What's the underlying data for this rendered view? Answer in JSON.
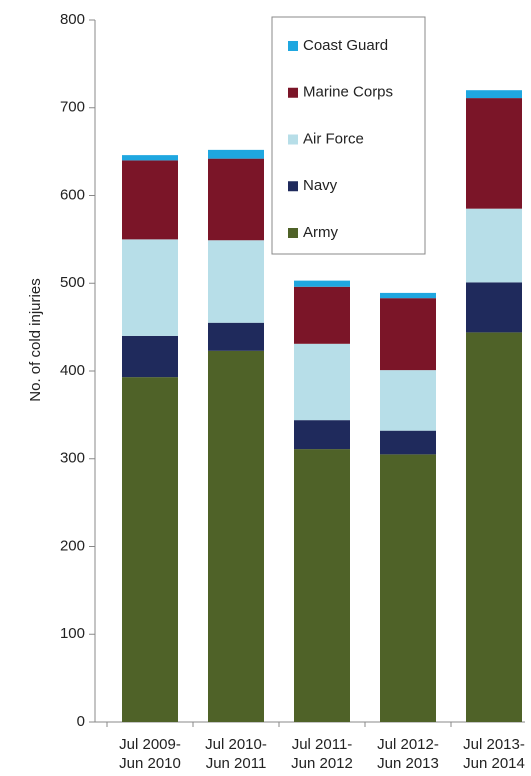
{
  "chart_data": {
    "type": "stacked_bar",
    "y_label": "No. of cold injuries",
    "categories": [
      [
        "Jul 2009-",
        "Jun 2010"
      ],
      [
        "Jul 2010-",
        "Jun 2011"
      ],
      [
        "Jul 2011-",
        "Jun 2012"
      ],
      [
        "Jul 2012-",
        "Jun 2013"
      ],
      [
        "Jul 2013-",
        "Jun 2014"
      ]
    ],
    "series": [
      {
        "name": "Army",
        "color": "#4f6228",
        "values": [
          393,
          423,
          311,
          305,
          444
        ]
      },
      {
        "name": "Navy",
        "color": "#1f2a5c",
        "values": [
          47,
          32,
          33,
          27,
          57
        ]
      },
      {
        "name": "Air Force",
        "color": "#b7dee8",
        "values": [
          110,
          94,
          87,
          69,
          84
        ]
      },
      {
        "name": "Marine Corps",
        "color": "#7b1528",
        "values": [
          90,
          93,
          65,
          82,
          126
        ]
      },
      {
        "name": "Coast Guard",
        "color": "#1fa7e0",
        "values": [
          6,
          10,
          7,
          6,
          9
        ]
      }
    ],
    "ylim": [
      0,
      800
    ],
    "yticks": [
      0,
      100,
      200,
      300,
      400,
      500,
      600,
      700,
      800
    ],
    "legend": "top-right"
  }
}
